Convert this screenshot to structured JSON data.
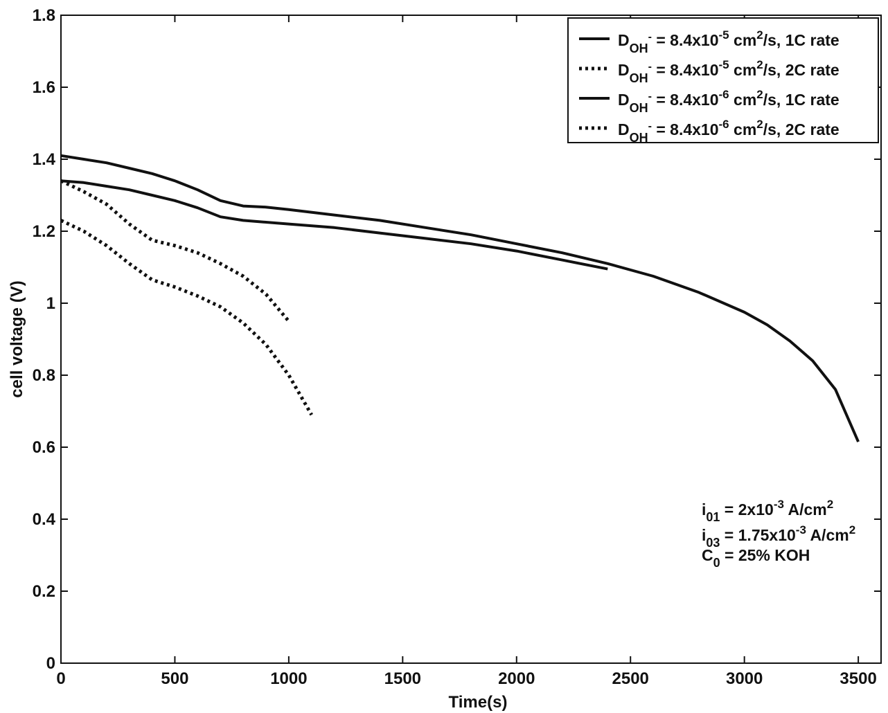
{
  "chart_data": {
    "type": "line",
    "title": "",
    "xlabel": "Time(s)",
    "ylabel": "cell voltage (V)",
    "xlim": [
      0,
      3600
    ],
    "ylim": [
      0,
      1.8
    ],
    "xticks": [
      0,
      500,
      1000,
      1500,
      2000,
      2500,
      3000,
      3500
    ],
    "yticks": [
      0,
      0.2,
      0.4,
      0.6,
      0.8,
      1,
      1.2,
      1.4,
      1.6,
      1.8
    ],
    "xtick_labels": [
      "0",
      "500",
      "1000",
      "1500",
      "2000",
      "2500",
      "3000",
      "3500"
    ],
    "ytick_labels": [
      "0",
      "0.2",
      "0.4",
      "0.6",
      "0.8",
      "1",
      "1.2",
      "1.4",
      "1.6",
      "1.8"
    ],
    "grid": false,
    "legend_position": "top-right",
    "series": [
      {
        "legend": {
          "d": "D",
          "sub": "OH",
          "sup_minus": "-",
          "eq": " = 8.4x10",
          "exp": "-5",
          "unit": " cm",
          "unit_exp": "2",
          "rest": "/s, 1C rate"
        },
        "style": "solid",
        "x": [
          0,
          100,
          200,
          300,
          400,
          500,
          600,
          700,
          800,
          900,
          1000,
          1200,
          1400,
          1600,
          1800,
          2000,
          2200,
          2400,
          2600,
          2800,
          3000,
          3100,
          3200,
          3300,
          3400,
          3500
        ],
        "y": [
          1.41,
          1.4,
          1.39,
          1.375,
          1.36,
          1.34,
          1.315,
          1.285,
          1.27,
          1.267,
          1.26,
          1.245,
          1.23,
          1.21,
          1.19,
          1.165,
          1.14,
          1.11,
          1.075,
          1.03,
          0.975,
          0.94,
          0.895,
          0.84,
          0.76,
          0.615
        ]
      },
      {
        "legend": {
          "d": "D",
          "sub": "OH",
          "sup_minus": "-",
          "eq": " = 8.4x10",
          "exp": "-5",
          "unit": " cm",
          "unit_exp": "2",
          "rest": "/s, 2C rate"
        },
        "style": "dotted",
        "x": [
          0,
          100,
          200,
          300,
          400,
          500,
          600,
          700,
          800,
          900,
          1000
        ],
        "y": [
          1.34,
          1.31,
          1.275,
          1.22,
          1.175,
          1.16,
          1.14,
          1.11,
          1.075,
          1.025,
          0.95
        ]
      },
      {
        "legend": {
          "d": "D",
          "sub": "OH",
          "sup_minus": "-",
          "eq": " = 8.4x10",
          "exp": "-6",
          "unit": " cm",
          "unit_exp": "2",
          "rest": "/s, 1C rate"
        },
        "style": "solid",
        "x": [
          0,
          100,
          200,
          300,
          400,
          500,
          600,
          700,
          800,
          1000,
          1200,
          1400,
          1600,
          1800,
          2000,
          2200,
          2400
        ],
        "y": [
          1.34,
          1.335,
          1.325,
          1.315,
          1.3,
          1.285,
          1.265,
          1.24,
          1.23,
          1.22,
          1.21,
          1.195,
          1.18,
          1.165,
          1.145,
          1.12,
          1.095
        ]
      },
      {
        "legend": {
          "d": "D",
          "sub": "OH",
          "sup_minus": "-",
          "eq": " = 8.4x10",
          "exp": "-6",
          "unit": " cm",
          "unit_exp": "2",
          "rest": "/s, 2C rate"
        },
        "style": "dotted",
        "x": [
          0,
          100,
          200,
          300,
          400,
          500,
          600,
          700,
          800,
          900,
          1000,
          1100
        ],
        "y": [
          1.23,
          1.2,
          1.16,
          1.11,
          1.065,
          1.045,
          1.02,
          0.99,
          0.945,
          0.885,
          0.8,
          0.69
        ]
      }
    ],
    "annotations": [
      {
        "base": "i",
        "sub": "01",
        "eq": " = 2x10",
        "exp": "-3",
        "unit": " A/cm",
        "unit_exp": "2"
      },
      {
        "base": "i",
        "sub": "03",
        "eq": " = 1.75x10",
        "exp": "-3",
        "unit": " A/cm",
        "unit_exp": "2"
      },
      {
        "base": "C",
        "sub": "0",
        "eq": " = 25% KOH",
        "exp": "",
        "unit": "",
        "unit_exp": ""
      }
    ]
  }
}
